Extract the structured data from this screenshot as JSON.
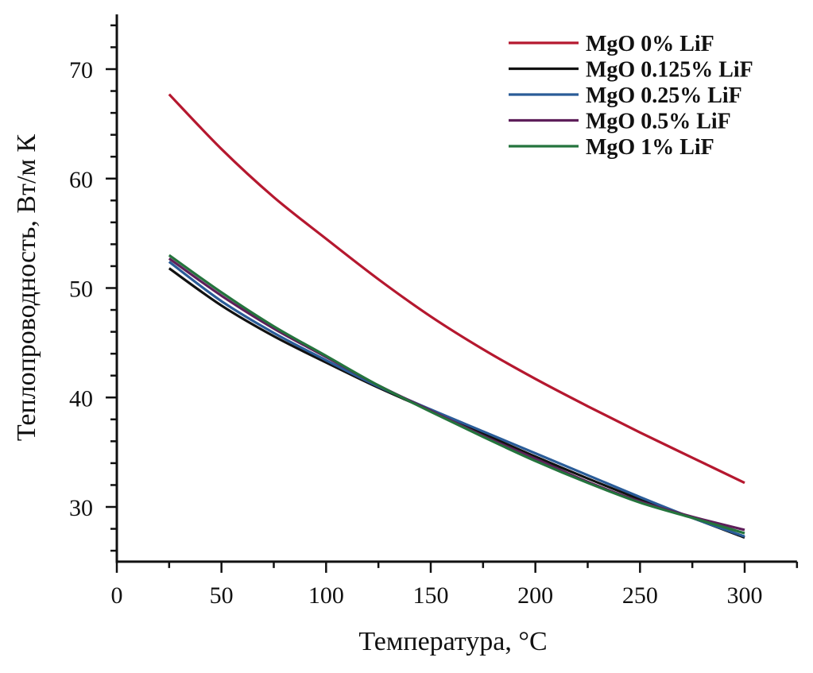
{
  "chart_data": {
    "type": "line",
    "title": "",
    "xlabel": "Температура, °C",
    "ylabel": "Теплопроводность, Вт/м К",
    "xlim": [
      0,
      325
    ],
    "ylim": [
      25,
      75
    ],
    "x_ticks": [
      0,
      50,
      100,
      150,
      200,
      250,
      300
    ],
    "x_tick_labels": [
      "0",
      "50",
      "100",
      "150",
      "200",
      "250",
      "300"
    ],
    "x_minor_step": 25,
    "y_ticks": [
      30,
      40,
      50,
      60,
      70
    ],
    "y_tick_labels": [
      "30",
      "40",
      "50",
      "60",
      "70"
    ],
    "y_minor_step": 2,
    "grid": false,
    "legend_position": "top-right",
    "x": [
      25,
      50,
      75,
      100,
      125,
      150,
      175,
      200,
      225,
      250,
      275,
      300
    ],
    "series": [
      {
        "name": "MgO 0% LiF",
        "color": "#b5182f",
        "values": [
          67.7,
          62.7,
          58.3,
          54.5,
          50.8,
          47.4,
          44.4,
          41.7,
          39.2,
          36.8,
          34.5,
          32.2
        ]
      },
      {
        "name": "MgO 0.125% LiF",
        "color": "#111111",
        "values": [
          51.8,
          48.4,
          45.6,
          43.2,
          40.9,
          38.8,
          36.7,
          34.6,
          32.6,
          30.7,
          29.0,
          27.2
        ]
      },
      {
        "name": "MgO 0.25% LiF",
        "color": "#2a5c98",
        "values": [
          52.4,
          48.8,
          45.9,
          43.4,
          41.0,
          38.9,
          36.9,
          34.9,
          32.9,
          30.9,
          29.0,
          27.3
        ]
      },
      {
        "name": "MgO 0.5% LiF",
        "color": "#5e1f5a",
        "values": [
          52.7,
          49.3,
          46.3,
          43.7,
          41.1,
          38.8,
          36.5,
          34.4,
          32.3,
          30.5,
          29.1,
          27.9
        ]
      },
      {
        "name": "MgO 1% LiF",
        "color": "#24743d",
        "values": [
          53.0,
          49.6,
          46.5,
          43.8,
          41.1,
          38.7,
          36.4,
          34.2,
          32.2,
          30.4,
          29.0,
          27.6
        ]
      }
    ]
  }
}
